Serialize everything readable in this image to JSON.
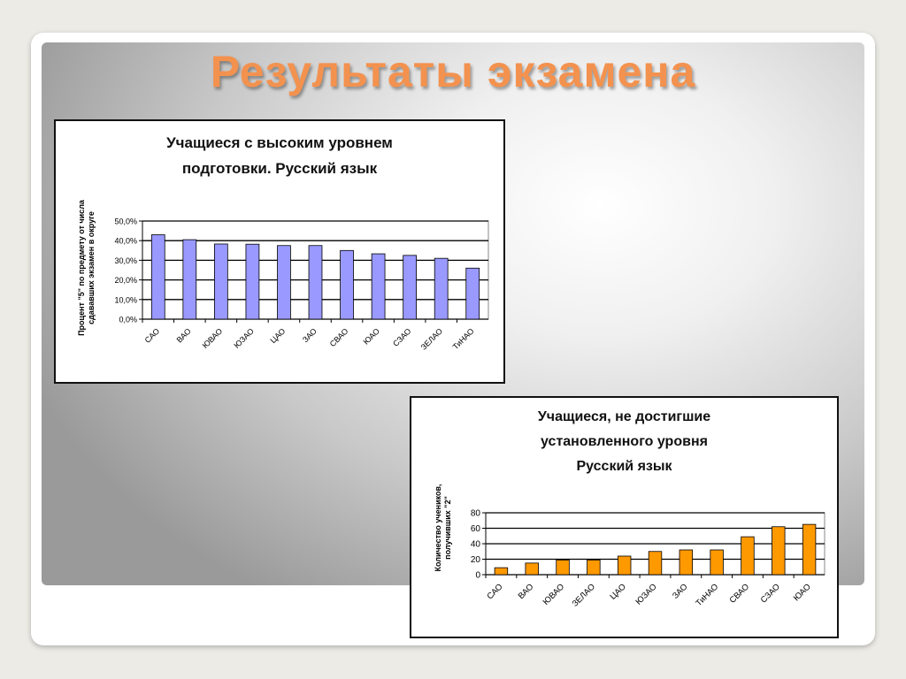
{
  "slide": {
    "title": "Результаты экзамена"
  },
  "chart_data": [
    {
      "type": "bar",
      "title_lines": [
        "Учащиеся с высоким уровнем",
        "подготовки. Русский язык"
      ],
      "ylabel_lines": [
        "Процент \"5\" по предмету от числа",
        "сдававших экзамен в округе"
      ],
      "xlabel": "",
      "categories": [
        "САО",
        "ВАО",
        "ЮВАО",
        "ЮЗАО",
        "ЦАО",
        "ЗАО",
        "СВАО",
        "ЮАО",
        "СЗАО",
        "ЗЕЛАО",
        "ТиНАО"
      ],
      "values": [
        43.0,
        40.5,
        38.3,
        38.2,
        37.5,
        37.5,
        35.0,
        33.3,
        32.5,
        31.0,
        26.0
      ],
      "ylim": [
        0,
        50
      ],
      "yticks": [
        0,
        10,
        20,
        30,
        40,
        50
      ],
      "ytick_labels": [
        "0,0%",
        "10,0%",
        "20,0%",
        "30,0%",
        "40,0%",
        "50,0%"
      ],
      "bar_color": "#9999ff",
      "grid": true,
      "legend": "none"
    },
    {
      "type": "bar",
      "title_lines": [
        "Учащиеся, не достигшие",
        "установленного уровня",
        "Русский язык"
      ],
      "ylabel_lines": [
        "Количество учеников,",
        "получивших \"2\""
      ],
      "xlabel": "",
      "categories": [
        "САО",
        "ВАО",
        "ЮВАО",
        "ЗЕЛАО",
        "ЦАО",
        "ЮЗАО",
        "ЗАО",
        "ТиНАО",
        "СВАО",
        "СЗАО",
        "ЮАО"
      ],
      "values": [
        9,
        15,
        19,
        19,
        24,
        30,
        32,
        32,
        49,
        62,
        65
      ],
      "ylim": [
        0,
        80
      ],
      "yticks": [
        0,
        20,
        40,
        60,
        80
      ],
      "ytick_labels": [
        "0",
        "20",
        "40",
        "60",
        "80"
      ],
      "bar_color": "#ff9900",
      "grid": true,
      "legend": "none"
    }
  ]
}
